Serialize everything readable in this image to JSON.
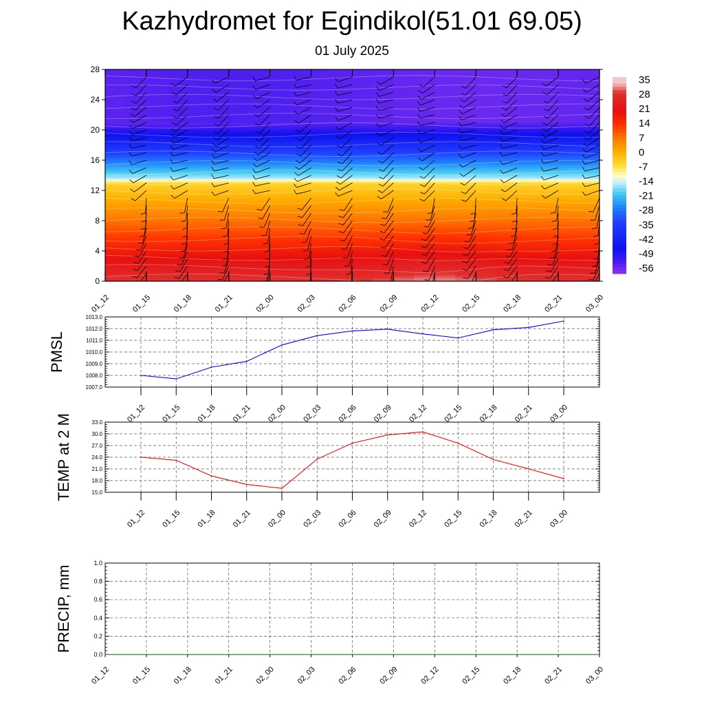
{
  "title": "Kazhydromet for Egindikol(51.01 69.05)",
  "subtitle": "01 July 2025",
  "time_labels": [
    "01_12",
    "01_15",
    "01_18",
    "01_21",
    "02_00",
    "02_03",
    "02_06",
    "02_09",
    "02_12",
    "02_15",
    "02_18",
    "02_21",
    "03_00"
  ],
  "chart_data": [
    {
      "type": "heatmap",
      "name": "cross-section",
      "x": [
        "01_12",
        "01_15",
        "01_18",
        "01_21",
        "02_00",
        "02_03",
        "02_06",
        "02_09",
        "02_12",
        "02_15",
        "02_18",
        "02_21",
        "03_00"
      ],
      "ylim": [
        0,
        28
      ],
      "yticks": [
        0,
        4,
        8,
        12,
        16,
        20,
        24,
        28
      ],
      "colorbar": {
        "labels": [
          "35",
          "28",
          "21",
          "14",
          "7",
          "0",
          "-7",
          "-14",
          "-21",
          "-28",
          "-35",
          "-42",
          "-49",
          "-56"
        ],
        "stops": [
          {
            "v": 35,
            "c": "#f2c8c8"
          },
          {
            "v": 30,
            "c": "#e03030"
          },
          {
            "v": 21,
            "c": "#e81010"
          },
          {
            "v": 14,
            "c": "#ff3000"
          },
          {
            "v": 7,
            "c": "#ff7800"
          },
          {
            "v": 0,
            "c": "#ffb000"
          },
          {
            "v": -7,
            "c": "#ffe040"
          },
          {
            "v": -12,
            "c": "#ffffc8"
          },
          {
            "v": -15,
            "c": "#c8f0ff"
          },
          {
            "v": -21,
            "c": "#40c8f0"
          },
          {
            "v": -28,
            "c": "#2080ff"
          },
          {
            "v": -35,
            "c": "#2040ff"
          },
          {
            "v": -49,
            "c": "#1010f0"
          },
          {
            "v": -56,
            "c": "#5020f0"
          },
          {
            "v": -60,
            "c": "#8030f0"
          }
        ]
      }
    },
    {
      "type": "line",
      "name": "pmsl",
      "ylabel": "PMSL",
      "categories": [
        "01_12",
        "01_15",
        "01_18",
        "01_21",
        "02_00",
        "02_03",
        "02_06",
        "02_09",
        "02_12",
        "02_15",
        "02_18",
        "02_21",
        "03_00"
      ],
      "values": [
        1008.0,
        1007.7,
        1008.7,
        1009.2,
        1010.6,
        1011.4,
        1011.8,
        1011.95,
        1011.55,
        1011.2,
        1011.9,
        1012.1,
        1012.65
      ],
      "ylim": [
        1007.0,
        1013.0
      ],
      "yticks": [
        "1007.0",
        "1008.0",
        "1009.0",
        "1010.0",
        "1011.0",
        "1012.0",
        "1013.0"
      ],
      "color": "#0000ff"
    },
    {
      "type": "line",
      "name": "temp",
      "ylabel": "TEMP at 2 M",
      "categories": [
        "01_12",
        "01_15",
        "01_18",
        "01_21",
        "02_00",
        "02_03",
        "02_06",
        "02_09",
        "02_12",
        "02_15",
        "02_18",
        "02_21",
        "03_00"
      ],
      "values": [
        24.0,
        23.2,
        19.2,
        17.0,
        16.0,
        23.5,
        27.6,
        29.7,
        30.5,
        27.6,
        23.4,
        21.0,
        18.5
      ],
      "ylim": [
        15.0,
        33.0
      ],
      "yticks": [
        "15.0",
        "18.0",
        "21.0",
        "24.0",
        "27.0",
        "30.0",
        "33.0"
      ],
      "color": "#ff0000"
    },
    {
      "type": "line",
      "name": "precip",
      "ylabel": "PRECIP, mm",
      "categories": [
        "01_12",
        "01_15",
        "01_18",
        "01_21",
        "02_00",
        "02_03",
        "02_06",
        "02_09",
        "02_12",
        "02_15",
        "02_18",
        "02_21",
        "03_00"
      ],
      "values": [
        0,
        0,
        0,
        0,
        0,
        0,
        0,
        0,
        0,
        0,
        0,
        0,
        0
      ],
      "ylim": [
        0.0,
        1.0
      ],
      "yticks": [
        "0.0",
        "0.2",
        "0.4",
        "0.6",
        "0.8",
        "1.0"
      ],
      "color": "#006400"
    }
  ]
}
